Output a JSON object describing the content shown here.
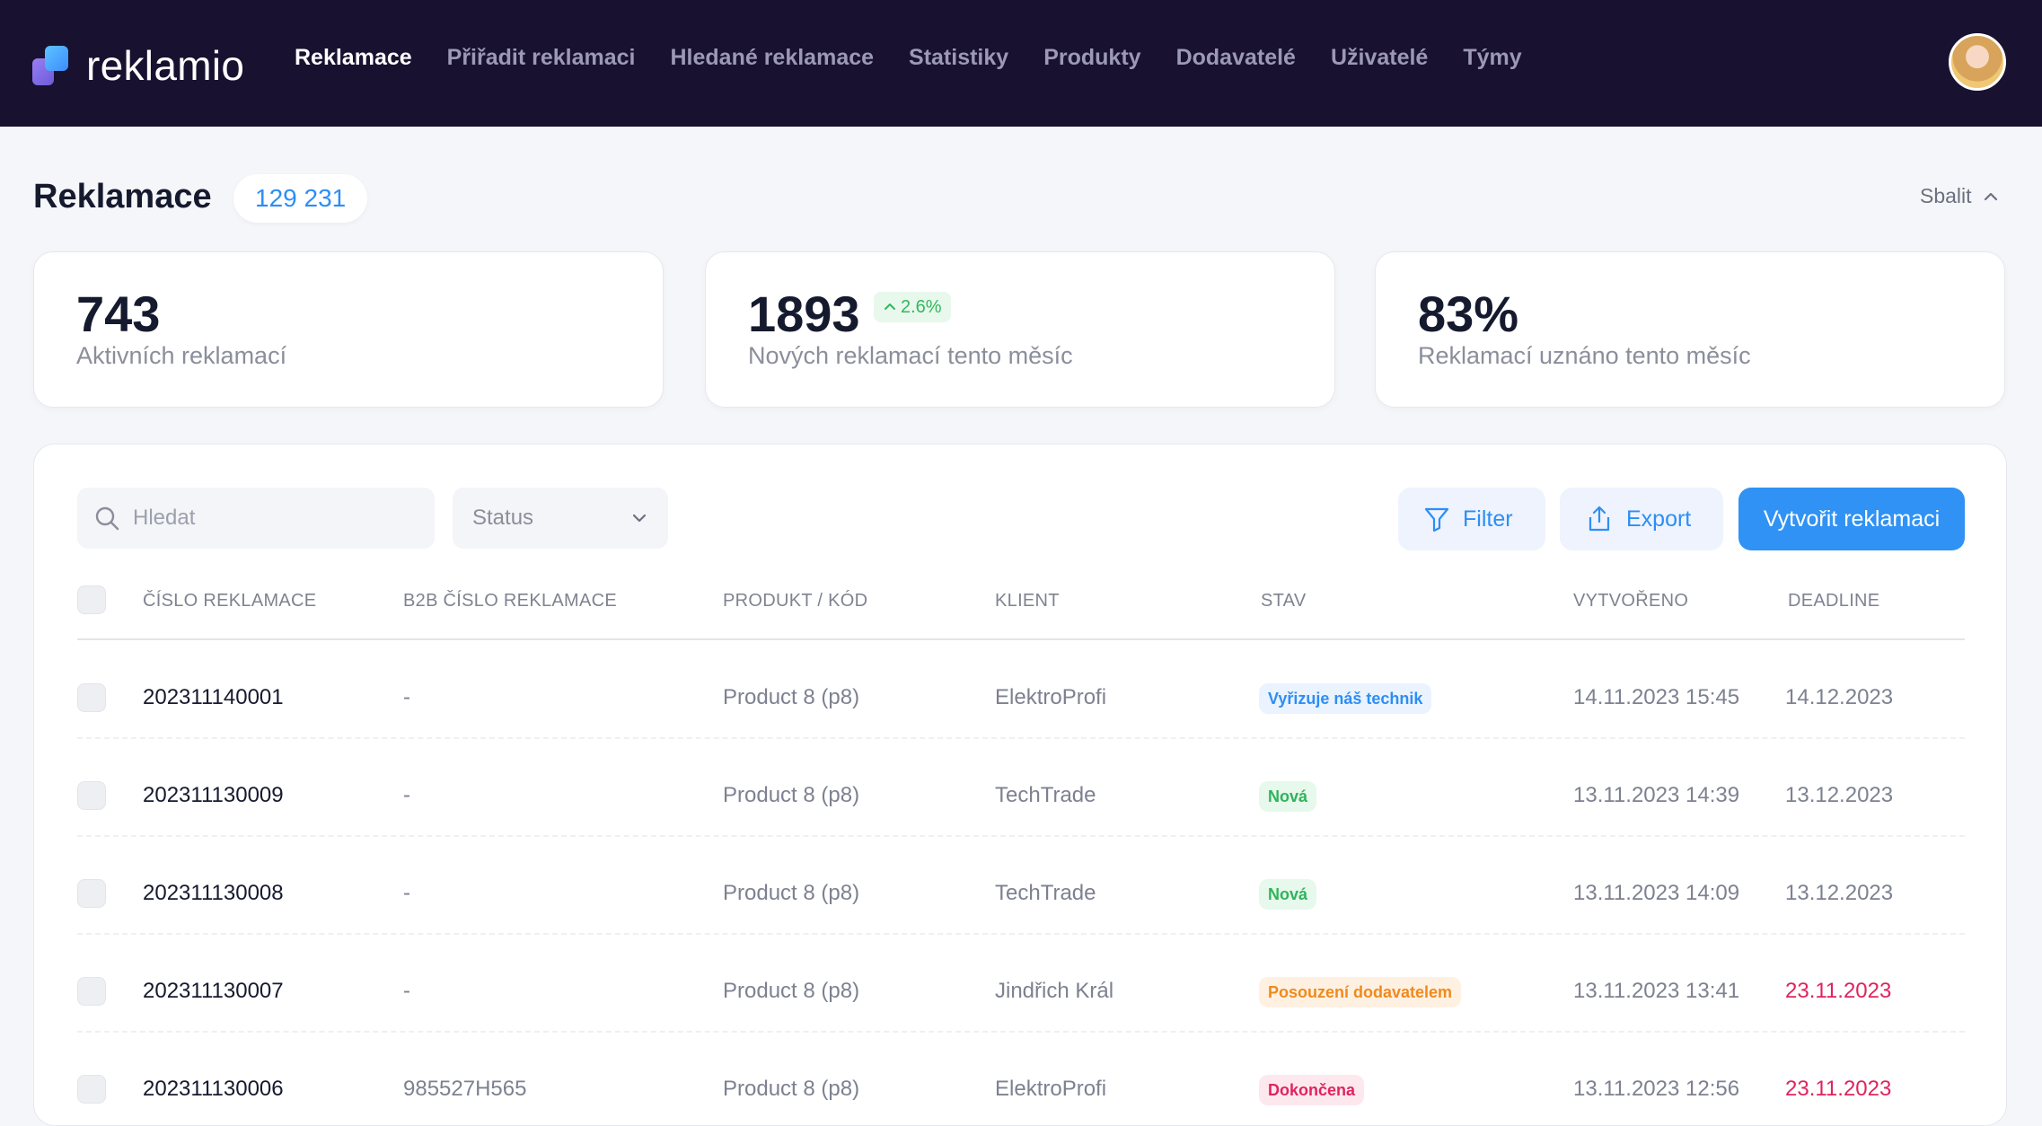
{
  "app": {
    "logo_text": "reklamio",
    "nav": [
      "Reklamace",
      "Přiřadit reklamaci",
      "Hledané reklamace",
      "Statistiky",
      "Produkty",
      "Dodavatelé",
      "Uživatelé",
      "Týmy"
    ],
    "active_nav": "Reklamace"
  },
  "header": {
    "title": "Reklamace",
    "count": "129 231",
    "collapse_label": "Sbalit"
  },
  "stats": [
    {
      "value": "743",
      "label": "Aktivních reklamací"
    },
    {
      "value": "1893",
      "label": "Nových reklamací tento měsíc",
      "trend": "2.6%"
    },
    {
      "value": "83%",
      "label": "Reklamací uznáno tento měsíc"
    }
  ],
  "toolbar": {
    "search_placeholder": "Hledat",
    "status_label": "Status",
    "filter_label": "Filter",
    "export_label": "Export",
    "create_label": "Vytvořit reklamaci"
  },
  "table": {
    "columns": [
      "ČÍSLO REKLAMACE",
      "B2B ČÍSLO REKLAMACE",
      "PRODUKT / KÓD",
      "KLIENT",
      "STAV",
      "VYTVOŘENO",
      "DEADLINE"
    ],
    "rows": [
      {
        "id": "202311140001",
        "b2b": "-",
        "product": "Product 8 (p8)",
        "client": "ElektroProfi",
        "status": "Vyřizuje náš technik",
        "status_type": "blue",
        "created": "14.11.2023 15:45",
        "deadline": "14.12.2023",
        "deadline_overdue": false
      },
      {
        "id": "202311130009",
        "b2b": "-",
        "product": "Product 8 (p8)",
        "client": "TechTrade",
        "status": "Nová",
        "status_type": "green",
        "created": "13.11.2023 14:39",
        "deadline": "13.12.2023",
        "deadline_overdue": false
      },
      {
        "id": "202311130008",
        "b2b": "-",
        "product": "Product 8 (p8)",
        "client": "TechTrade",
        "status": "Nová",
        "status_type": "green",
        "created": "13.11.2023 14:09",
        "deadline": "13.12.2023",
        "deadline_overdue": false
      },
      {
        "id": "202311130007",
        "b2b": "-",
        "product": "Product 8 (p8)",
        "client": "Jindřich Král",
        "status": "Posouzení dodavatelem",
        "status_type": "orange",
        "created": "13.11.2023 13:41",
        "deadline": "23.11.2023",
        "deadline_overdue": true
      },
      {
        "id": "202311130006",
        "b2b": "985527H565",
        "product": "Product 8 (p8)",
        "client": "ElektroProfi",
        "status": "Dokončena",
        "status_type": "pink",
        "created": "13.11.2023 12:56",
        "deadline": "23.11.2023",
        "deadline_overdue": true
      }
    ]
  },
  "colors": {
    "nav_bg": "#18112f",
    "accent": "#2f92f4",
    "overdue": "#e0245e",
    "badge_blue_bg": "#eaf3fe",
    "badge_blue_fg": "#2d8ef5",
    "badge_green_bg": "#e7f8ec",
    "badge_green_fg": "#2fb45a",
    "badge_orange_bg": "#fff1e2",
    "badge_orange_fg": "#f08a1c",
    "badge_pink_bg": "#fde8ee",
    "badge_pink_fg": "#e0245e"
  },
  "icons": {
    "search": "search-icon",
    "chevron": "chevron-down-icon",
    "filter": "filter-icon",
    "export": "export-icon",
    "collapse": "chevron-up-icon"
  }
}
